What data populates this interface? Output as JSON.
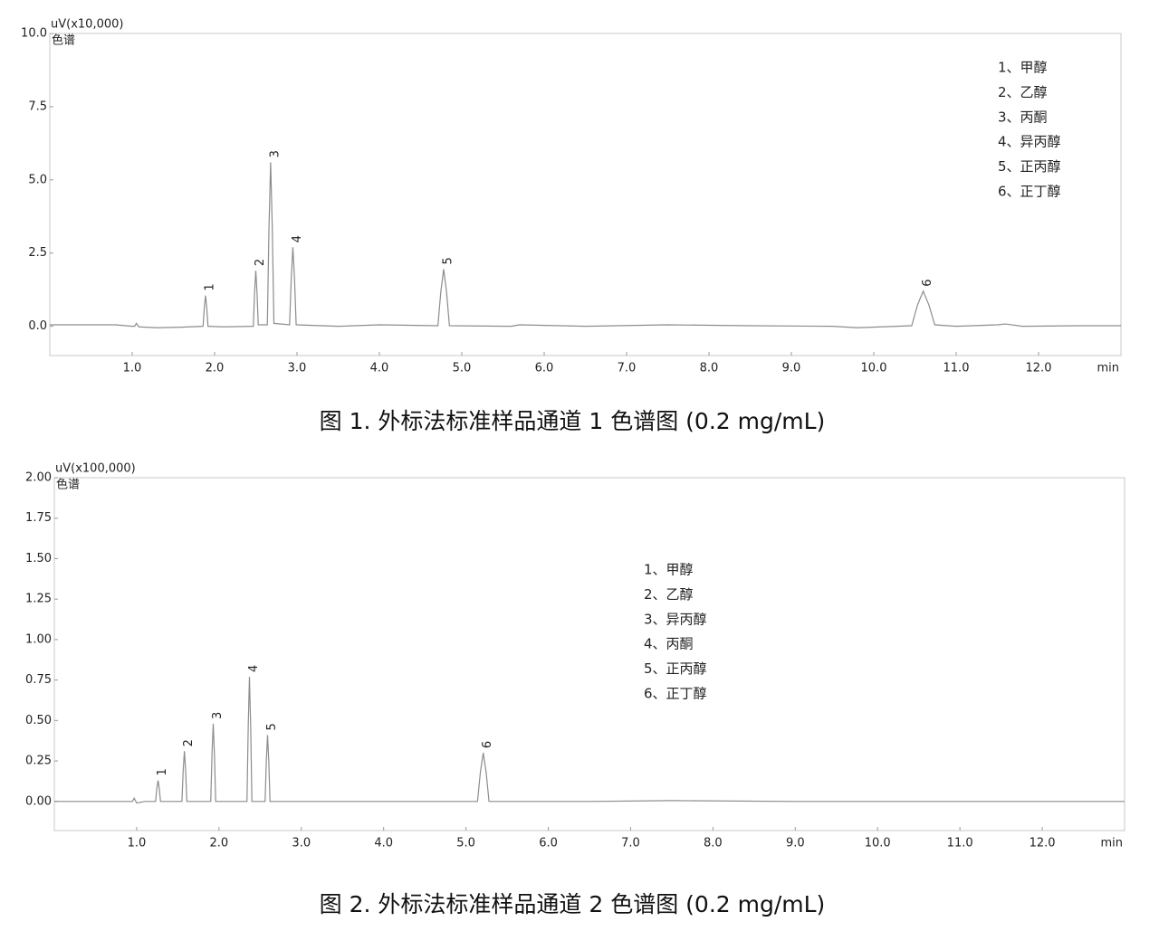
{
  "chart_data": [
    {
      "type": "line",
      "y_unit_label": "uV(x10,000)",
      "y_label": "色谱",
      "x_label": "min",
      "caption": "图 1. 外标法标准样品通道 1 色谱图 (0.2 mg/mL)",
      "color": "#8c8c8c",
      "xlim": [
        0,
        13
      ],
      "ylim": [
        -1.0,
        10.0
      ],
      "xticks": [
        {
          "value": 1,
          "label": "1.0"
        },
        {
          "value": 2,
          "label": "2.0"
        },
        {
          "value": 3,
          "label": "3.0"
        },
        {
          "value": 4,
          "label": "4.0"
        },
        {
          "value": 5,
          "label": "5.0"
        },
        {
          "value": 6,
          "label": "6.0"
        },
        {
          "value": 7,
          "label": "7.0"
        },
        {
          "value": 8,
          "label": "8.0"
        },
        {
          "value": 9,
          "label": "9.0"
        },
        {
          "value": 10,
          "label": "10.0"
        },
        {
          "value": 11,
          "label": "11.0"
        },
        {
          "value": 12,
          "label": "12.0"
        }
      ],
      "yticks": [
        {
          "value": 0,
          "label": "0.0"
        },
        {
          "value": 2.5,
          "label": "2.5"
        },
        {
          "value": 5,
          "label": "5.0"
        },
        {
          "value": 7.5,
          "label": "7.5"
        },
        {
          "value": 10,
          "label": "10.0"
        }
      ],
      "x": [
        0.0,
        0.8,
        1.0,
        1.03,
        1.05,
        1.08,
        1.3,
        1.6,
        1.86,
        1.875,
        1.89,
        1.905,
        1.92,
        2.1,
        2.47,
        2.485,
        2.5,
        2.515,
        2.53,
        2.64,
        2.66,
        2.68,
        2.7,
        2.72,
        2.91,
        2.93,
        2.95,
        2.97,
        2.99,
        3.5,
        4.0,
        4.71,
        4.745,
        4.78,
        4.815,
        4.85,
        5.6,
        5.7,
        6.5,
        7.5,
        8.5,
        9.5,
        9.8,
        10.46,
        10.53,
        10.6,
        10.67,
        10.74,
        11.0,
        11.5,
        11.6,
        11.8,
        12.5,
        13.0
      ],
      "values": [
        0.05,
        0.05,
        0.0,
        0.0,
        0.1,
        -0.02,
        -0.05,
        -0.03,
        0.0,
        0.63,
        1.05,
        0.63,
        0.0,
        -0.02,
        0.0,
        1.14,
        1.9,
        1.14,
        0.05,
        0.05,
        3.36,
        5.6,
        3.36,
        0.1,
        0.05,
        1.62,
        2.7,
        1.62,
        0.05,
        0.0,
        0.05,
        0.02,
        1.17,
        1.95,
        1.17,
        0.02,
        0.0,
        0.05,
        0.0,
        0.05,
        0.02,
        0.0,
        -0.05,
        0.02,
        0.72,
        1.2,
        0.72,
        0.05,
        0.0,
        0.05,
        0.08,
        0.0,
        0.02,
        0.02
      ],
      "annotations": [
        {
          "text": "1",
          "x": 1.89,
          "y": 1.05
        },
        {
          "text": "2",
          "x": 2.5,
          "y": 1.9
        },
        {
          "text": "3",
          "x": 2.68,
          "y": 5.6
        },
        {
          "text": "4",
          "x": 2.95,
          "y": 2.7
        },
        {
          "text": "5",
          "x": 4.78,
          "y": 1.95
        },
        {
          "text": "6",
          "x": 10.6,
          "y": 1.2
        }
      ],
      "compound_list": [
        "1、甲醇",
        "2、乙醇",
        "3、丙酮",
        "4、异丙醇",
        "5、正丙醇",
        "6、正丁醇"
      ]
    },
    {
      "type": "line",
      "y_unit_label": "uV(x100,000)",
      "y_label": "色谱",
      "x_label": "min",
      "caption": "图 2. 外标法标准样品通道 2 色谱图 (0.2 mg/mL)",
      "color": "#8c8c8c",
      "xlim": [
        0,
        13
      ],
      "ylim": [
        -0.18,
        2.0
      ],
      "xticks": [
        {
          "value": 1,
          "label": "1.0"
        },
        {
          "value": 2,
          "label": "2.0"
        },
        {
          "value": 3,
          "label": "3.0"
        },
        {
          "value": 4,
          "label": "4.0"
        },
        {
          "value": 5,
          "label": "5.0"
        },
        {
          "value": 6,
          "label": "6.0"
        },
        {
          "value": 7,
          "label": "7.0"
        },
        {
          "value": 8,
          "label": "8.0"
        },
        {
          "value": 9,
          "label": "9.0"
        },
        {
          "value": 10,
          "label": "10.0"
        },
        {
          "value": 11,
          "label": "11.0"
        },
        {
          "value": 12,
          "label": "12.0"
        }
      ],
      "yticks": [
        {
          "value": 0,
          "label": "0.00"
        },
        {
          "value": 0.25,
          "label": "0.25"
        },
        {
          "value": 0.5,
          "label": "0.50"
        },
        {
          "value": 0.75,
          "label": "0.75"
        },
        {
          "value": 1,
          "label": "1.00"
        },
        {
          "value": 1.25,
          "label": "1.25"
        },
        {
          "value": 1.5,
          "label": "1.50"
        },
        {
          "value": 1.75,
          "label": "1.75"
        },
        {
          "value": 2,
          "label": "2.00"
        }
      ],
      "x": [
        0.0,
        0.9,
        0.95,
        0.97,
        1.0,
        1.1,
        1.23,
        1.245,
        1.26,
        1.275,
        1.29,
        1.55,
        1.565,
        1.58,
        1.595,
        1.61,
        1.9,
        1.915,
        1.93,
        1.945,
        1.96,
        2.34,
        2.355,
        2.37,
        2.385,
        2.4,
        2.56,
        2.575,
        2.59,
        2.605,
        2.62,
        3.5,
        4.5,
        5.14,
        5.175,
        5.21,
        5.245,
        5.28,
        6.5,
        7.5,
        9.0,
        13.0
      ],
      "values": [
        0.0,
        0.0,
        0.0,
        0.02,
        -0.01,
        0.0,
        0.0,
        0.08,
        0.13,
        0.08,
        0.0,
        0.0,
        0.19,
        0.31,
        0.19,
        0.0,
        0.0,
        0.29,
        0.48,
        0.29,
        0.0,
        0.0,
        0.46,
        0.77,
        0.46,
        0.0,
        0.0,
        0.25,
        0.41,
        0.25,
        0.0,
        0.0,
        0.0,
        0.0,
        0.18,
        0.3,
        0.18,
        0.0,
        0.0,
        0.005,
        0.0,
        0.0
      ],
      "annotations": [
        {
          "text": "1",
          "x": 1.26,
          "y": 0.13
        },
        {
          "text": "2",
          "x": 1.58,
          "y": 0.31
        },
        {
          "text": "3",
          "x": 1.93,
          "y": 0.48
        },
        {
          "text": "4",
          "x": 2.37,
          "y": 0.77
        },
        {
          "text": "5",
          "x": 2.59,
          "y": 0.41
        },
        {
          "text": "6",
          "x": 5.21,
          "y": 0.3
        }
      ],
      "compound_list": [
        "1、甲醇",
        "2、乙醇",
        "3、异丙醇",
        "4、丙酮",
        "5、正丙醇",
        "6、正丁醇"
      ]
    }
  ]
}
